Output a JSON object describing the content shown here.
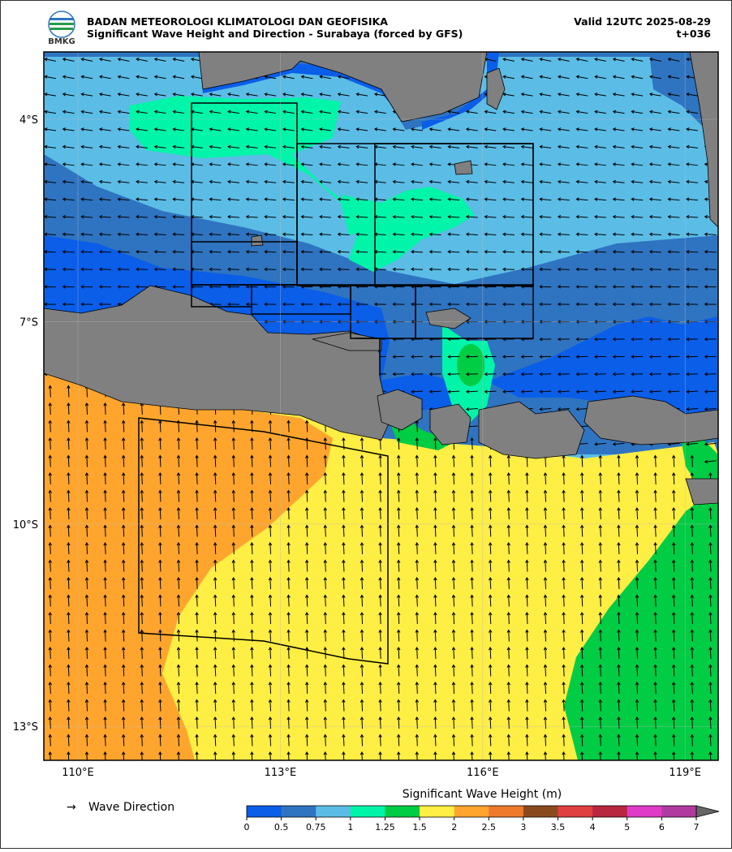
{
  "header": {
    "logo_text": "BMKG",
    "agency": "BADAN METEOROLOGI KLIMATOLOGI DAN GEOFISIKA",
    "title": "Significant Wave Height and Direction - Surabaya (forced by GFS)",
    "valid": "Valid 12UTC 2025-08-29",
    "lead": "t+036"
  },
  "map": {
    "lon_labels": [
      "110°E",
      "113°E",
      "116°E",
      "119°E"
    ],
    "lat_labels": [
      "4°S",
      "7°S",
      "10°S",
      "13°S"
    ]
  },
  "legend": {
    "symbol": "→",
    "label": "Wave Direction"
  },
  "colorbar": {
    "title": "Significant Wave Height (m)",
    "levels": [
      0,
      0.5,
      0.75,
      1,
      1.25,
      1.5,
      2,
      2.5,
      3,
      3.5,
      4,
      5,
      6,
      7
    ],
    "colors": [
      "#0a5ee8",
      "#2f74c0",
      "#5bbde6",
      "#00f5a8",
      "#00cc44",
      "#ffee44",
      "#ffa52e",
      "#ee7a2a",
      "#8b4a1e",
      "#e04040",
      "#b8263f",
      "#e03ac8",
      "#b03aa0"
    ]
  }
}
